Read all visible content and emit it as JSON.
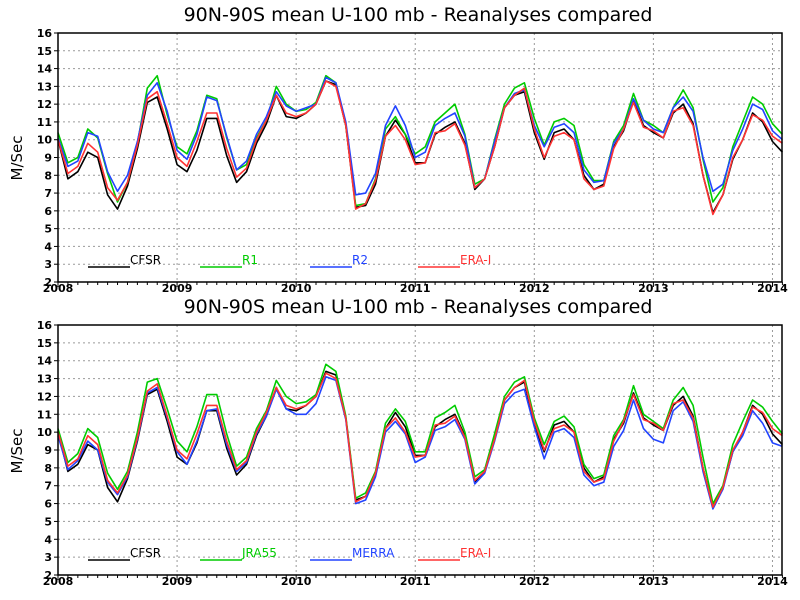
{
  "chart_data": [
    {
      "type": "line",
      "title": "90N-90S mean U-100 mb - Reanalyses compared",
      "ylabel": "M/Sec",
      "xlabel": "",
      "ylim": [
        2,
        16
      ],
      "yticks": [
        2,
        3,
        4,
        5,
        6,
        7,
        8,
        9,
        10,
        11,
        12,
        13,
        14,
        15,
        16
      ],
      "xlim": [
        2008,
        2014.08
      ],
      "xticks": [
        2008,
        2009,
        2010,
        2011,
        2012,
        2013,
        2014
      ],
      "xtick_labels": [
        "2008",
        "2009",
        "2010",
        "2011",
        "2012",
        "2013",
        "2014"
      ],
      "grid": true,
      "legend": "bottom-left",
      "x_start": 2008.0,
      "x_step_months": 1,
      "series": [
        {
          "name": "CFSR",
          "color": "#000000",
          "values": [
            10.0,
            7.8,
            8.2,
            9.3,
            9.0,
            6.9,
            6.1,
            7.4,
            9.5,
            12.1,
            12.4,
            10.6,
            8.6,
            8.2,
            9.4,
            11.2,
            11.2,
            9.1,
            7.6,
            8.2,
            9.8,
            10.9,
            12.5,
            11.3,
            11.2,
            11.5,
            12.0,
            13.3,
            13.1,
            10.8,
            6.2,
            6.3,
            7.5,
            10.2,
            11.1,
            10.3,
            8.7,
            8.7,
            10.3,
            10.7,
            11.0,
            9.8,
            7.2,
            7.8,
            9.6,
            11.8,
            12.5,
            12.7,
            10.4,
            8.9,
            10.4,
            10.6,
            10.0,
            8.0,
            7.2,
            7.5,
            9.6,
            10.5,
            12.2,
            10.8,
            10.4,
            10.1,
            11.5,
            12.0,
            10.9,
            8.0,
            5.9,
            6.9,
            8.9,
            10.0,
            11.5,
            11.0,
            9.9,
            9.3
          ]
        },
        {
          "name": "R1",
          "color": "#00cc00",
          "values": [
            10.4,
            8.7,
            9.0,
            10.6,
            10.1,
            8.1,
            6.5,
            7.6,
            9.8,
            12.9,
            13.6,
            11.4,
            9.6,
            9.2,
            10.5,
            12.5,
            12.3,
            10.1,
            8.3,
            8.6,
            10.1,
            11.1,
            13.0,
            12.0,
            11.6,
            11.7,
            12.1,
            13.6,
            13.2,
            10.8,
            6.3,
            6.4,
            7.8,
            10.6,
            11.3,
            10.3,
            9.2,
            9.6,
            11.0,
            11.5,
            12.0,
            10.3,
            7.5,
            7.8,
            10.0,
            12.0,
            12.9,
            13.2,
            11.2,
            9.7,
            11.0,
            11.2,
            10.8,
            8.6,
            7.7,
            7.7,
            9.9,
            10.8,
            12.6,
            11.1,
            10.8,
            10.4,
            11.8,
            12.8,
            11.8,
            8.9,
            6.5,
            7.3,
            9.6,
            11.0,
            12.4,
            12.0,
            10.9,
            10.3
          ]
        },
        {
          "name": "R2",
          "color": "#2244ff",
          "values": [
            10.1,
            8.5,
            8.8,
            10.4,
            10.2,
            8.2,
            7.1,
            8.0,
            9.9,
            12.5,
            13.2,
            11.6,
            9.4,
            8.9,
            10.3,
            12.4,
            12.2,
            10.2,
            8.3,
            8.8,
            10.3,
            11.3,
            12.7,
            11.9,
            11.6,
            11.8,
            12.0,
            13.5,
            13.2,
            11.0,
            6.9,
            7.0,
            8.1,
            10.8,
            11.9,
            10.8,
            9.0,
            9.3,
            10.8,
            11.2,
            11.5,
            10.2,
            7.3,
            7.8,
            9.9,
            11.8,
            12.6,
            12.8,
            10.8,
            9.6,
            10.7,
            10.9,
            10.4,
            8.3,
            7.6,
            7.7,
            9.8,
            10.6,
            12.3,
            11.1,
            10.6,
            10.4,
            11.8,
            12.4,
            11.6,
            9.0,
            7.1,
            7.5,
            9.4,
            10.6,
            12.0,
            11.7,
            10.5,
            10.0
          ]
        },
        {
          "name": "ERA-I",
          "color": "#ff3333",
          "values": [
            10.0,
            8.1,
            8.5,
            9.8,
            9.3,
            7.3,
            6.6,
            7.6,
            9.7,
            12.3,
            12.7,
            10.9,
            9.0,
            8.5,
            9.9,
            11.5,
            11.5,
            9.5,
            7.9,
            8.4,
            10.0,
            11.1,
            12.5,
            11.5,
            11.3,
            11.5,
            12.0,
            13.3,
            13.0,
            10.8,
            6.1,
            6.4,
            7.7,
            10.2,
            10.8,
            10.0,
            8.6,
            8.7,
            10.4,
            10.5,
            10.9,
            9.7,
            7.3,
            7.8,
            9.6,
            11.8,
            12.5,
            12.9,
            10.6,
            9.0,
            10.2,
            10.4,
            10.0,
            7.8,
            7.2,
            7.4,
            9.5,
            10.6,
            12.1,
            10.7,
            10.5,
            10.1,
            11.6,
            11.8,
            10.8,
            8.0,
            5.8,
            6.9,
            9.0,
            10.0,
            11.4,
            11.1,
            10.2,
            9.8
          ]
        }
      ]
    },
    {
      "type": "line",
      "title": "90N-90S mean U-100 mb - Reanalyses compared",
      "ylabel": "M/Sec",
      "xlabel": "",
      "ylim": [
        2,
        16
      ],
      "yticks": [
        2,
        3,
        4,
        5,
        6,
        7,
        8,
        9,
        10,
        11,
        12,
        13,
        14,
        15,
        16
      ],
      "xlim": [
        2008,
        2014.08
      ],
      "xticks": [
        2008,
        2009,
        2010,
        2011,
        2012,
        2013,
        2014
      ],
      "xtick_labels": [
        "2008",
        "2009",
        "2010",
        "2011",
        "2012",
        "2013",
        "2014"
      ],
      "grid": true,
      "legend": "bottom-left",
      "x_start": 2008.0,
      "x_step_months": 1,
      "series": [
        {
          "name": "CFSR",
          "color": "#000000",
          "values": [
            10.0,
            7.8,
            8.2,
            9.3,
            9.0,
            6.9,
            6.1,
            7.4,
            9.5,
            12.1,
            12.4,
            10.6,
            8.6,
            8.2,
            9.4,
            11.2,
            11.2,
            9.1,
            7.6,
            8.2,
            9.8,
            10.9,
            12.5,
            11.3,
            11.2,
            11.5,
            12.0,
            13.4,
            13.2,
            10.8,
            6.2,
            6.4,
            7.6,
            10.2,
            11.1,
            10.3,
            8.7,
            8.7,
            10.3,
            10.7,
            11.0,
            9.8,
            7.2,
            7.8,
            9.6,
            11.8,
            12.5,
            12.8,
            10.4,
            8.9,
            10.4,
            10.6,
            10.0,
            8.0,
            7.2,
            7.5,
            9.6,
            10.5,
            12.2,
            10.8,
            10.4,
            10.1,
            11.5,
            12.0,
            10.9,
            8.0,
            5.8,
            6.9,
            8.9,
            10.0,
            11.5,
            11.0,
            9.9,
            9.3
          ]
        },
        {
          "name": "JRA55",
          "color": "#00cc00",
          "values": [
            10.2,
            8.3,
            8.8,
            10.2,
            9.7,
            7.7,
            6.8,
            7.8,
            10.0,
            12.8,
            13.0,
            11.3,
            9.5,
            8.9,
            10.3,
            12.1,
            12.1,
            9.9,
            8.1,
            8.6,
            10.2,
            11.2,
            12.9,
            12.0,
            11.6,
            11.7,
            12.1,
            13.8,
            13.4,
            10.9,
            6.3,
            6.6,
            7.8,
            10.5,
            11.3,
            10.6,
            8.9,
            8.9,
            10.8,
            11.1,
            11.5,
            10.0,
            7.5,
            7.9,
            9.9,
            12.0,
            12.8,
            13.1,
            10.8,
            9.3,
            10.6,
            10.9,
            10.3,
            8.2,
            7.4,
            7.6,
            9.8,
            10.7,
            12.6,
            11.0,
            10.6,
            10.2,
            11.8,
            12.5,
            11.5,
            8.6,
            6.0,
            7.0,
            9.3,
            10.6,
            11.8,
            11.4,
            10.6,
            9.9
          ]
        },
        {
          "name": "MERRA",
          "color": "#2244ff",
          "values": [
            9.8,
            7.9,
            8.4,
            9.5,
            9.0,
            7.2,
            6.5,
            7.5,
            9.6,
            12.2,
            12.5,
            10.8,
            8.9,
            8.2,
            9.5,
            11.2,
            11.3,
            9.3,
            7.8,
            8.3,
            9.9,
            10.9,
            12.4,
            11.3,
            11.0,
            11.0,
            11.6,
            13.1,
            12.9,
            10.7,
            6.0,
            6.2,
            7.5,
            10.0,
            10.6,
            9.9,
            8.3,
            8.6,
            10.1,
            10.3,
            10.7,
            9.6,
            7.1,
            7.7,
            9.5,
            11.6,
            12.2,
            12.4,
            10.3,
            8.5,
            10.0,
            10.2,
            9.7,
            7.6,
            7.0,
            7.2,
            9.2,
            10.1,
            11.8,
            10.2,
            9.6,
            9.4,
            11.2,
            11.7,
            10.6,
            7.8,
            5.7,
            6.8,
            8.9,
            9.8,
            11.2,
            10.5,
            9.4,
            9.2
          ]
        },
        {
          "name": "ERA-I",
          "color": "#ff3333",
          "values": [
            10.0,
            8.1,
            8.5,
            9.8,
            9.3,
            7.3,
            6.6,
            7.6,
            9.7,
            12.3,
            12.7,
            10.9,
            9.0,
            8.5,
            9.9,
            11.5,
            11.5,
            9.5,
            7.9,
            8.4,
            10.0,
            11.1,
            12.5,
            11.5,
            11.3,
            11.5,
            12.0,
            13.3,
            13.0,
            10.8,
            6.1,
            6.4,
            7.7,
            10.2,
            10.8,
            10.0,
            8.6,
            8.7,
            10.4,
            10.5,
            10.9,
            9.7,
            7.3,
            7.8,
            9.6,
            11.8,
            12.5,
            12.9,
            10.6,
            9.0,
            10.2,
            10.4,
            10.0,
            7.8,
            7.2,
            7.4,
            9.5,
            10.6,
            12.1,
            10.7,
            10.5,
            10.1,
            11.6,
            11.8,
            10.8,
            8.0,
            5.8,
            6.9,
            9.0,
            10.0,
            11.4,
            11.1,
            10.2,
            9.8
          ]
        }
      ]
    }
  ]
}
